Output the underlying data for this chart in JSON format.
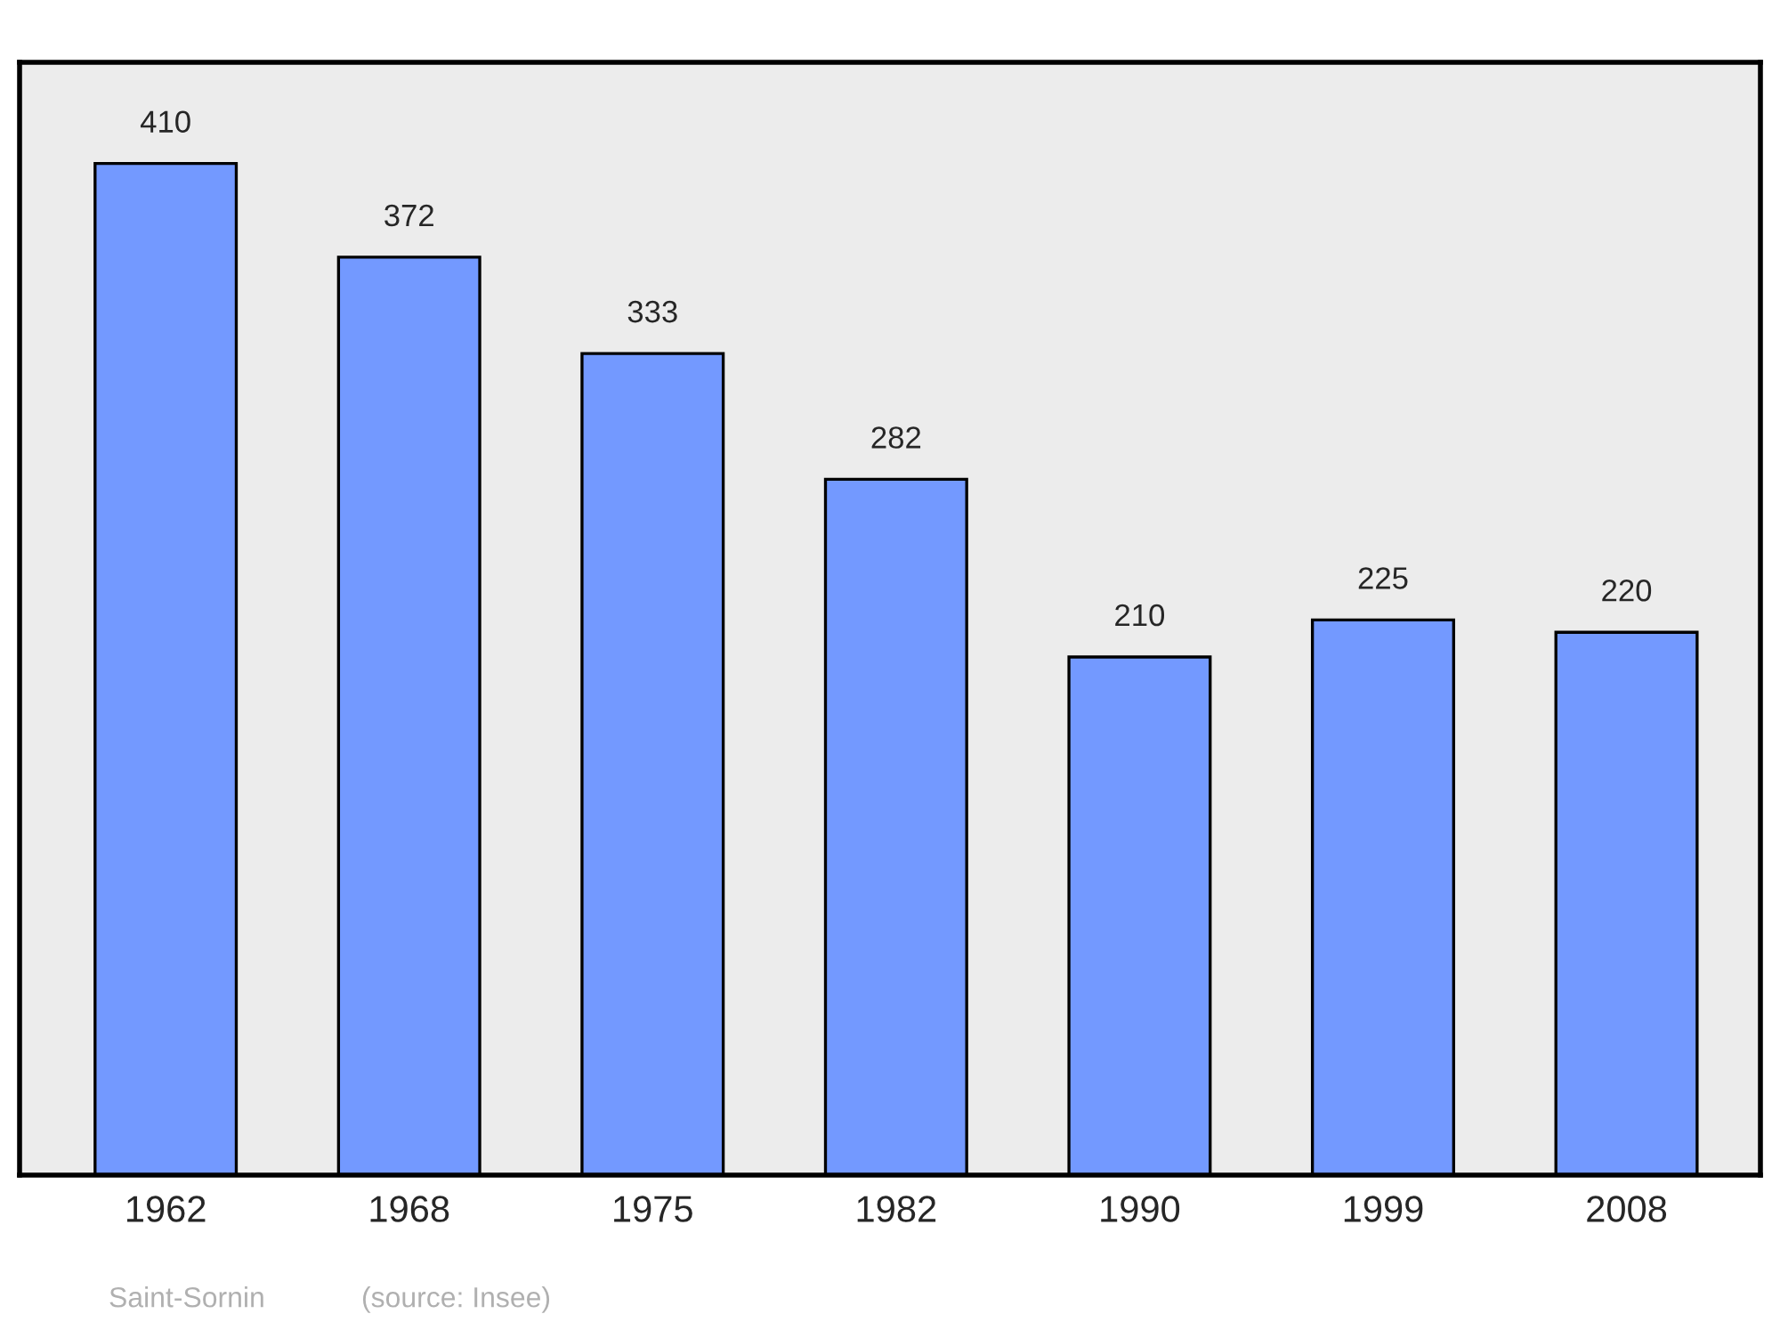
{
  "chart_data": {
    "type": "bar",
    "categories": [
      "1962",
      "1968",
      "1975",
      "1982",
      "1990",
      "1999",
      "2008"
    ],
    "values": [
      410,
      372,
      333,
      282,
      210,
      225,
      220
    ],
    "color": "#7399ff",
    "data_labels": true,
    "grid": false,
    "legend": false,
    "tick_labels": "x",
    "annotations": [
      "Saint-Sornin",
      "(source: Insee)"
    ]
  }
}
